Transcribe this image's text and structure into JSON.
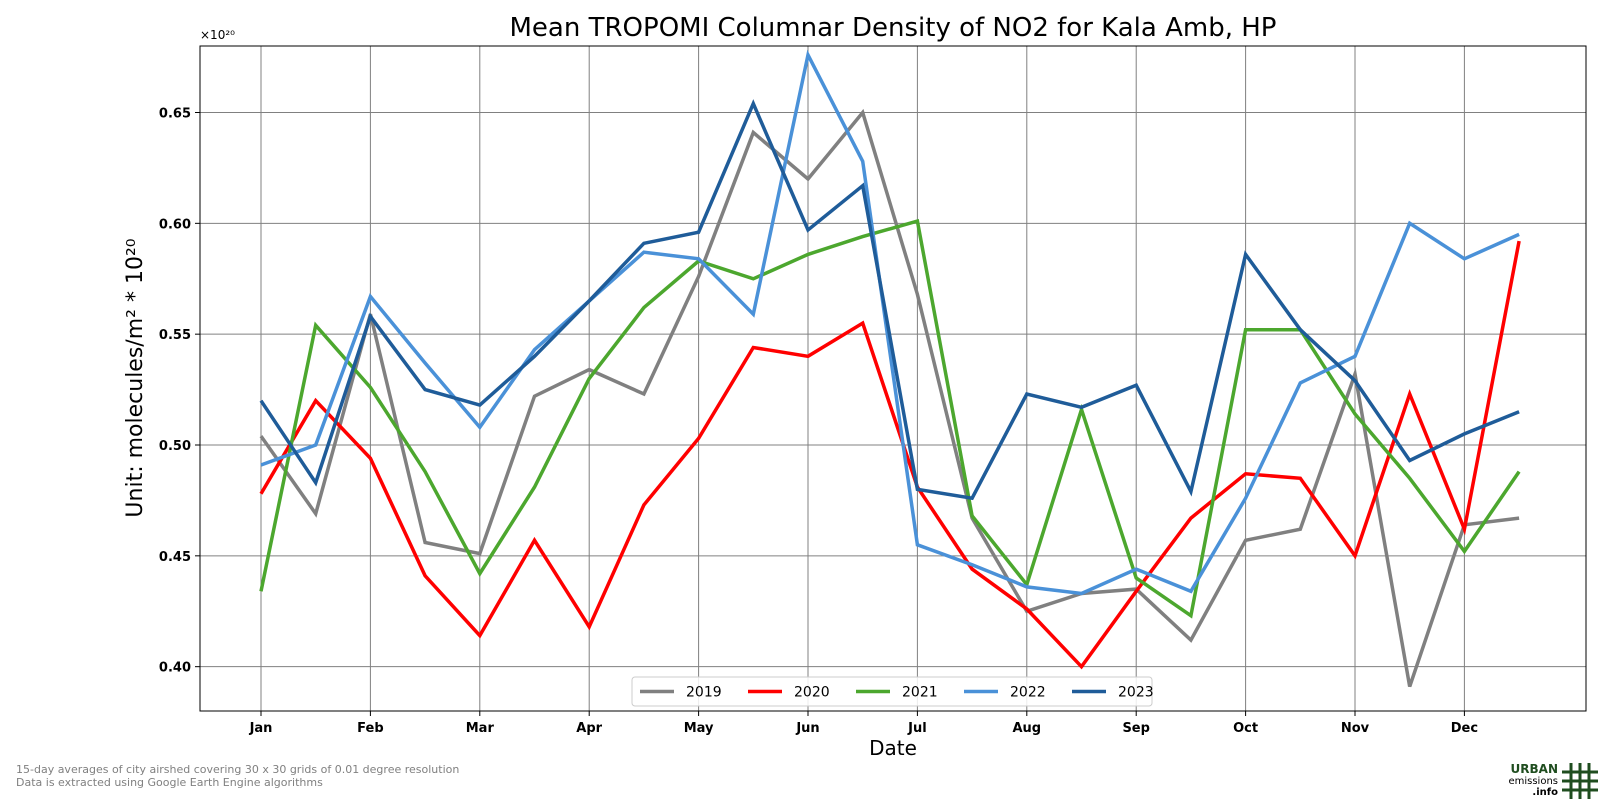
{
  "chart_data": {
    "type": "line",
    "title": "Mean TROPOMI Columnar Density of NO2 for Kala Amb, HP",
    "xlabel": "Date",
    "ylabel": "Unit: molecules/m² * 10²⁰",
    "y_multiplier_label": "×10²⁰",
    "ylim": [
      0.38,
      0.68
    ],
    "yticks": [
      0.4,
      0.45,
      0.5,
      0.55,
      0.6,
      0.65
    ],
    "ytick_labels": [
      "0.40",
      "0.45",
      "0.50",
      "0.55",
      "0.60",
      "0.65"
    ],
    "month_labels": [
      "Jan",
      "Feb",
      "Mar",
      "Apr",
      "May",
      "Jun",
      "Jul",
      "Aug",
      "Sep",
      "Oct",
      "Nov",
      "Dec"
    ],
    "grid": true,
    "legend_position": "bottom-center",
    "series": [
      {
        "name": "2019",
        "color": "#808080",
        "values": [
          0.504,
          0.469,
          0.559,
          0.456,
          0.451,
          0.522,
          0.534,
          0.523,
          0.576,
          0.641,
          0.62,
          0.65,
          0.568,
          0.467,
          0.425,
          0.433,
          0.435,
          0.412,
          0.457,
          0.462,
          0.532,
          0.391,
          0.464,
          0.467
        ]
      },
      {
        "name": "2020",
        "color": "#ff0000",
        "values": [
          0.478,
          0.52,
          0.494,
          0.441,
          0.414,
          0.457,
          0.418,
          0.473,
          0.503,
          0.544,
          0.54,
          0.555,
          0.481,
          0.444,
          0.426,
          0.4,
          0.434,
          0.467,
          0.487,
          0.485,
          0.45,
          0.523,
          0.462,
          0.592
        ]
      },
      {
        "name": "2021",
        "color": "#4ca72e",
        "values": [
          0.434,
          0.554,
          0.526,
          0.488,
          0.442,
          0.481,
          0.53,
          0.562,
          0.583,
          0.575,
          0.586,
          0.594,
          0.601,
          0.468,
          0.437,
          0.516,
          0.44,
          0.423,
          0.552,
          0.552,
          0.514,
          0.485,
          0.452,
          0.488
        ]
      },
      {
        "name": "2022",
        "color": "#4a91d8",
        "values": [
          0.491,
          0.5,
          0.567,
          0.537,
          0.508,
          0.543,
          0.565,
          0.587,
          0.584,
          0.559,
          0.676,
          0.628,
          0.455,
          0.446,
          0.436,
          0.433,
          0.444,
          0.434,
          0.476,
          0.528,
          0.54,
          0.6,
          0.584,
          0.595
        ]
      },
      {
        "name": "2023",
        "color": "#1f5c99",
        "values": [
          0.52,
          0.483,
          0.558,
          0.525,
          0.518,
          0.54,
          0.565,
          0.591,
          0.596,
          0.654,
          0.597,
          0.617,
          0.48,
          0.476,
          0.523,
          0.517,
          0.527,
          0.479,
          0.586,
          0.552,
          0.529,
          0.493,
          0.505,
          0.515
        ]
      }
    ]
  },
  "footnotes": [
    "15-day averages of city airshed covering 30 x 30 grids of 0.01 degree resolution",
    "Data is extracted using Google Earth Engine algorithms"
  ],
  "logo": {
    "line1": "URBAN",
    "line2": "emissions",
    "line3": ".info",
    "color": "#1f4d1f"
  }
}
